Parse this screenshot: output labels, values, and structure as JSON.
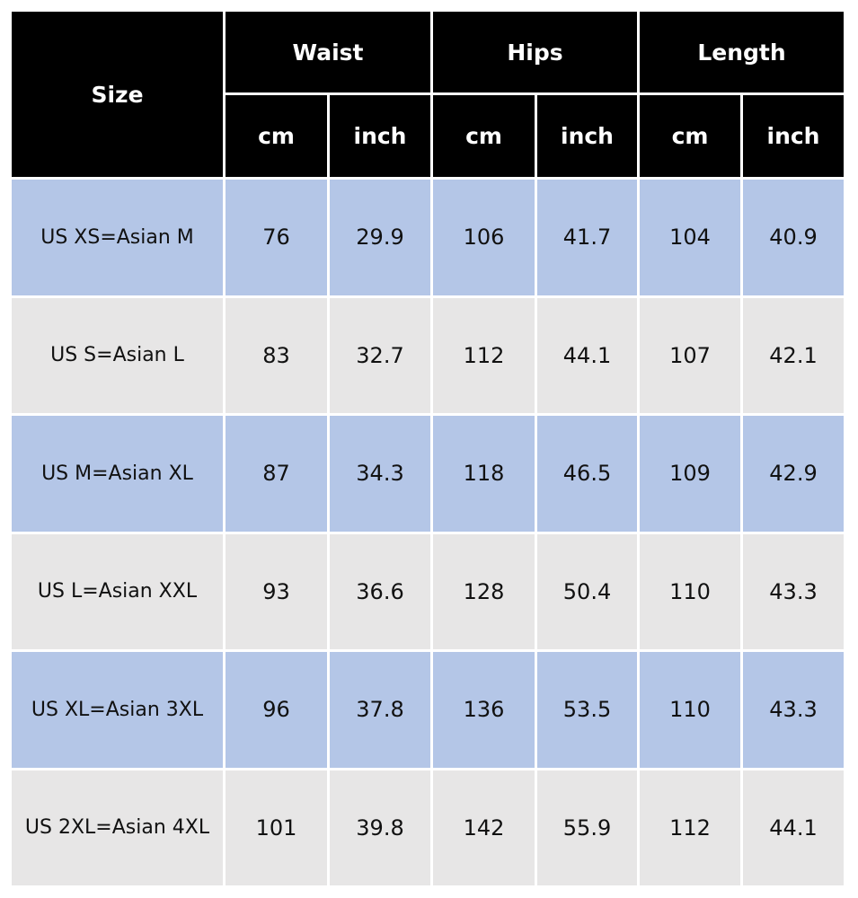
{
  "table": {
    "header": {
      "size": "Size",
      "groups": [
        {
          "label": "Waist",
          "units": [
            "cm",
            "inch"
          ]
        },
        {
          "label": "Hips",
          "units": [
            "cm",
            "inch"
          ]
        },
        {
          "label": "Length",
          "units": [
            "cm",
            "inch"
          ]
        }
      ]
    },
    "rows": [
      [
        "US XS=Asian M",
        76,
        29.9,
        106,
        41.7,
        104,
        40.9
      ],
      [
        "US S=Asian L",
        83,
        32.7,
        112,
        44.1,
        107,
        42.1
      ],
      [
        "US M=Asian XL",
        87,
        34.3,
        118,
        46.5,
        109,
        42.9
      ],
      [
        "US L=Asian XXL",
        93,
        36.6,
        128,
        50.4,
        110,
        43.3
      ],
      [
        "US XL=Asian 3XL",
        96,
        37.8,
        136,
        53.5,
        110,
        43.3
      ],
      [
        "US 2XL=Asian 4XL",
        101,
        39.8,
        142,
        55.9,
        112,
        44.1
      ]
    ]
  }
}
